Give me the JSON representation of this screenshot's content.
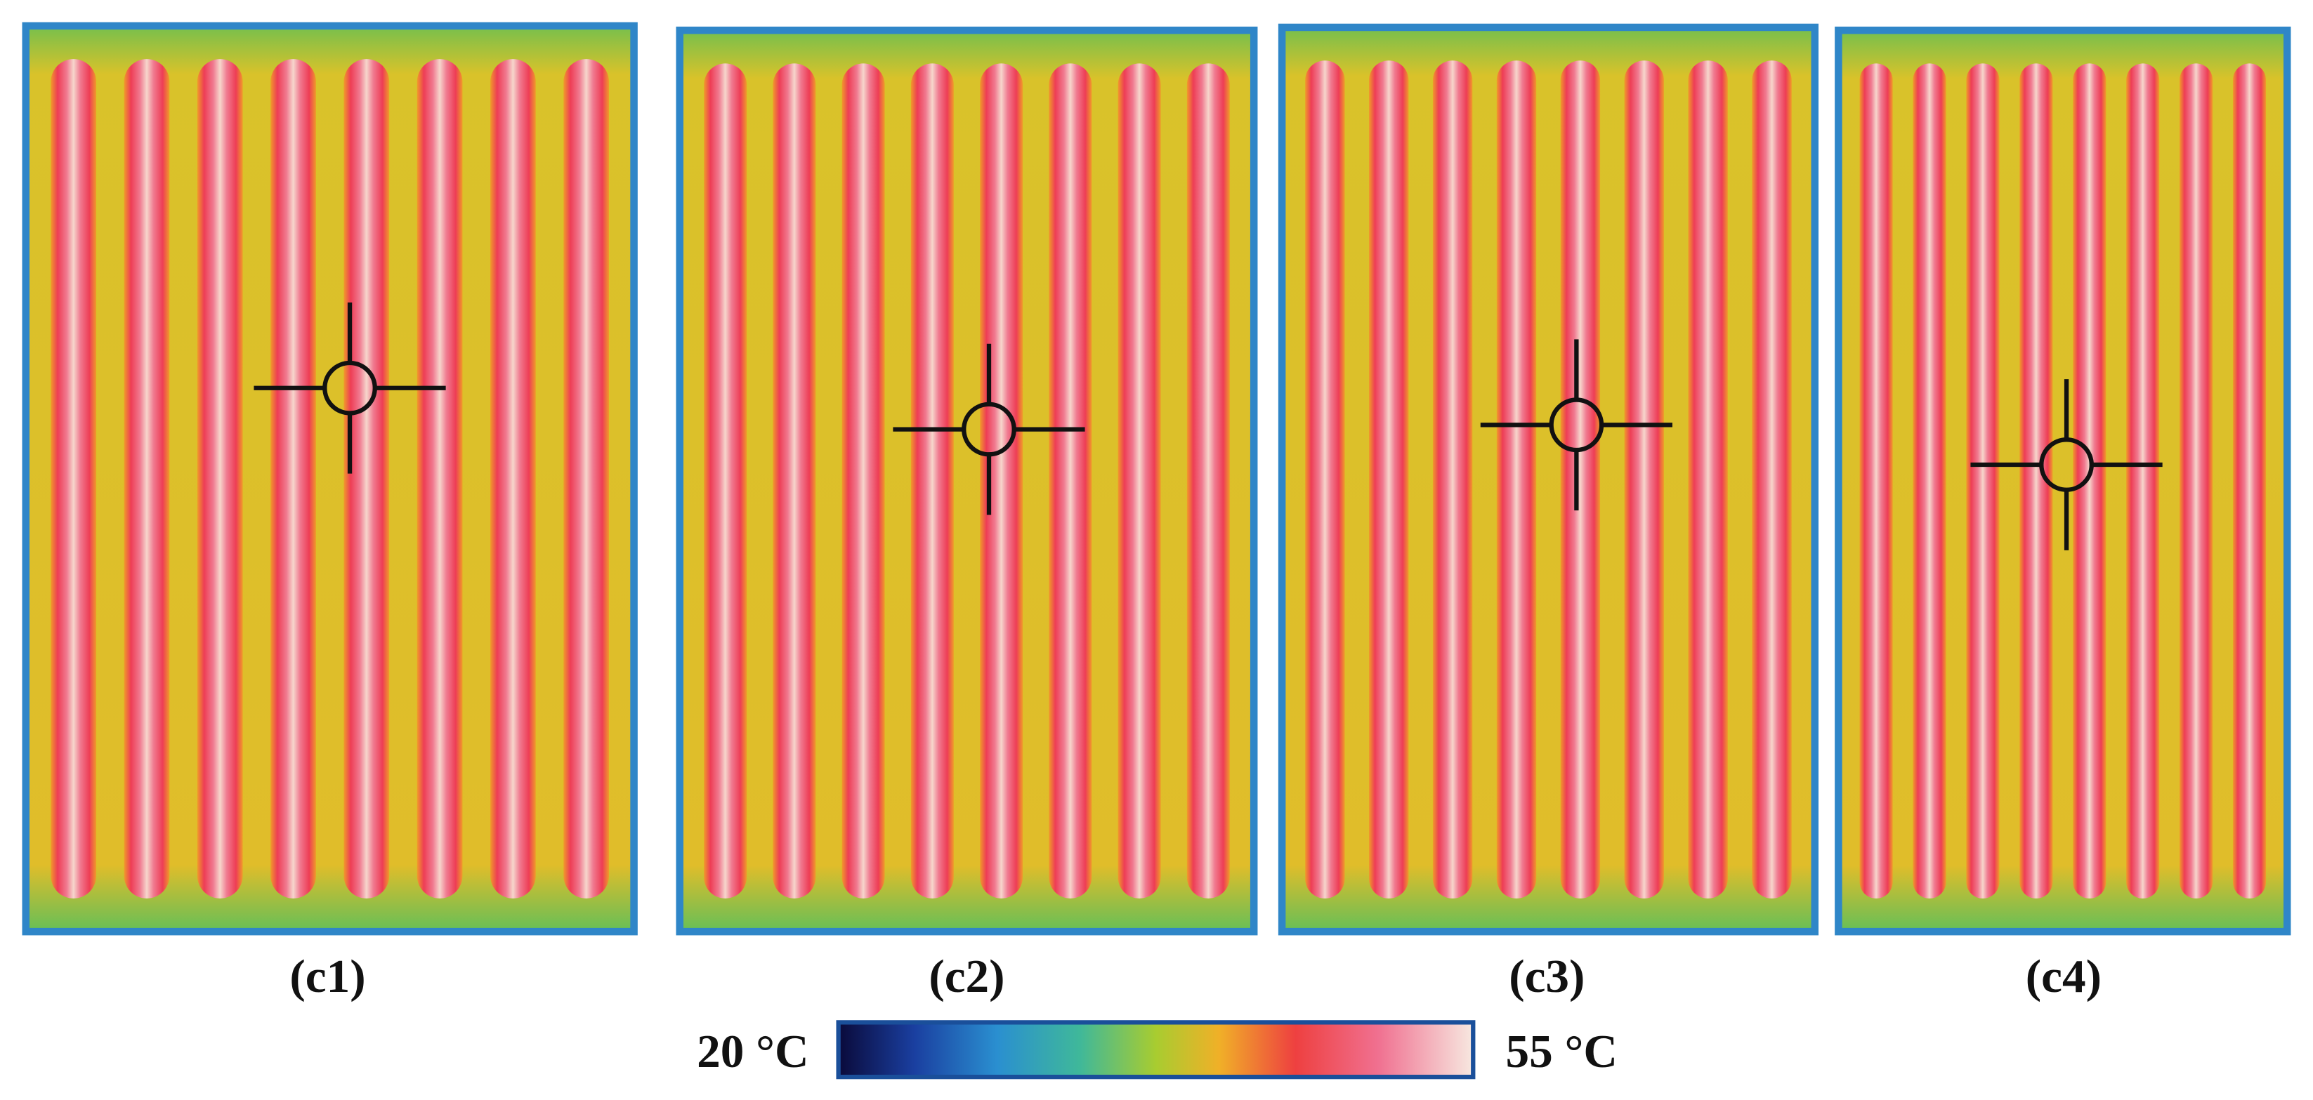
{
  "panels": [
    {
      "label": "(c1)"
    },
    {
      "label": "(c2)"
    },
    {
      "label": "(c3)"
    },
    {
      "label": "(c4)"
    }
  ],
  "colorbar": {
    "min_label": "20 °C",
    "max_label": "55 °C"
  }
}
